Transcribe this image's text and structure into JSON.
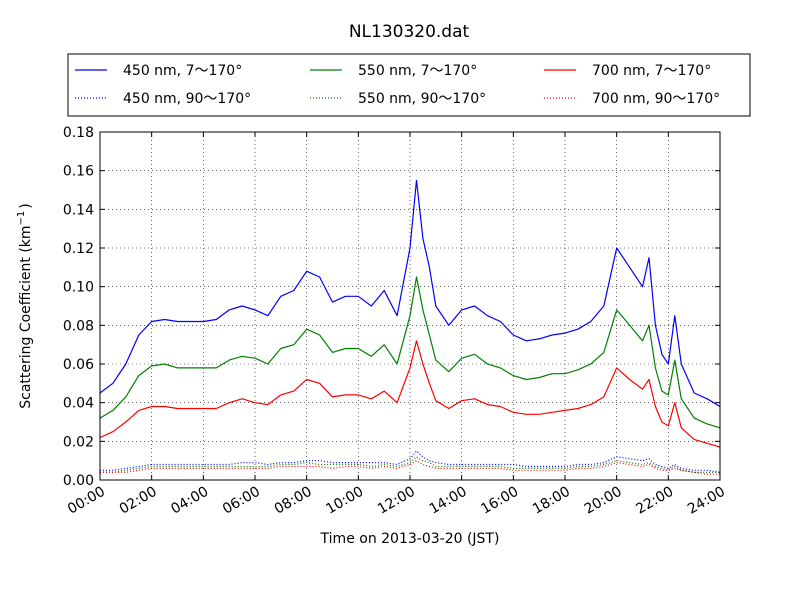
{
  "chart_data": {
    "type": "line",
    "title": "NL130320.dat",
    "xlabel": "Time on 2013-03-20 (JST)",
    "ylabel": "Scattering Coefficient (km",
    "ylabel_sup": "−1",
    "ylabel_close": ")",
    "xlim": [
      0,
      24
    ],
    "ylim": [
      0,
      0.18
    ],
    "grid": true,
    "legend_position": "top",
    "x_ticks": [
      {
        "value": 0,
        "label": "00:00"
      },
      {
        "value": 2,
        "label": "02:00"
      },
      {
        "value": 4,
        "label": "04:00"
      },
      {
        "value": 6,
        "label": "06:00"
      },
      {
        "value": 8,
        "label": "08:00"
      },
      {
        "value": 10,
        "label": "10:00"
      },
      {
        "value": 12,
        "label": "12:00"
      },
      {
        "value": 14,
        "label": "14:00"
      },
      {
        "value": 16,
        "label": "16:00"
      },
      {
        "value": 18,
        "label": "18:00"
      },
      {
        "value": 20,
        "label": "20:00"
      },
      {
        "value": 22,
        "label": "22:00"
      },
      {
        "value": 24,
        "label": "24:00"
      }
    ],
    "y_ticks": [
      {
        "value": 0.0,
        "label": "0.00"
      },
      {
        "value": 0.02,
        "label": "0.02"
      },
      {
        "value": 0.04,
        "label": "0.04"
      },
      {
        "value": 0.06,
        "label": "0.06"
      },
      {
        "value": 0.08,
        "label": "0.08"
      },
      {
        "value": 0.1,
        "label": "0.10"
      },
      {
        "value": 0.12,
        "label": "0.12"
      },
      {
        "value": 0.14,
        "label": "0.14"
      },
      {
        "value": 0.16,
        "label": "0.16"
      },
      {
        "value": 0.18,
        "label": "0.18"
      }
    ],
    "x": [
      0,
      0.5,
      1,
      1.5,
      2,
      2.5,
      3,
      3.5,
      4,
      4.5,
      5,
      5.5,
      6,
      6.5,
      7,
      7.5,
      8,
      8.5,
      9,
      9.5,
      10,
      10.5,
      11,
      11.5,
      12,
      12.25,
      12.5,
      12.75,
      13,
      13.5,
      14,
      14.5,
      15,
      15.5,
      16,
      16.5,
      17,
      17.5,
      18,
      18.5,
      19,
      19.5,
      20,
      20.5,
      21,
      21.25,
      21.5,
      21.75,
      22,
      22.25,
      22.5,
      23,
      23.5,
      24
    ],
    "series": [
      {
        "name": "450 nm, 7～170°",
        "color": "#0000ff",
        "style": "solid",
        "values": [
          0.045,
          0.05,
          0.06,
          0.075,
          0.082,
          0.083,
          0.082,
          0.082,
          0.082,
          0.083,
          0.088,
          0.09,
          0.088,
          0.085,
          0.095,
          0.098,
          0.108,
          0.105,
          0.092,
          0.095,
          0.095,
          0.09,
          0.098,
          0.085,
          0.12,
          0.155,
          0.125,
          0.11,
          0.09,
          0.08,
          0.088,
          0.09,
          0.085,
          0.082,
          0.075,
          0.072,
          0.073,
          0.075,
          0.076,
          0.078,
          0.082,
          0.09,
          0.12,
          0.11,
          0.1,
          0.115,
          0.08,
          0.065,
          0.06,
          0.085,
          0.06,
          0.045,
          0.042,
          0.038
        ]
      },
      {
        "name": "550 nm, 7～170°",
        "color": "#008000",
        "style": "solid",
        "values": [
          0.032,
          0.036,
          0.043,
          0.054,
          0.059,
          0.06,
          0.058,
          0.058,
          0.058,
          0.058,
          0.062,
          0.064,
          0.063,
          0.06,
          0.068,
          0.07,
          0.078,
          0.075,
          0.066,
          0.068,
          0.068,
          0.064,
          0.07,
          0.06,
          0.085,
          0.105,
          0.088,
          0.075,
          0.062,
          0.056,
          0.063,
          0.065,
          0.06,
          0.058,
          0.054,
          0.052,
          0.053,
          0.055,
          0.055,
          0.057,
          0.06,
          0.066,
          0.088,
          0.08,
          0.072,
          0.08,
          0.058,
          0.046,
          0.044,
          0.062,
          0.042,
          0.032,
          0.029,
          0.027
        ]
      },
      {
        "name": "700 nm, 7～170°",
        "color": "#ff0000",
        "style": "solid",
        "values": [
          0.022,
          0.025,
          0.03,
          0.036,
          0.038,
          0.038,
          0.037,
          0.037,
          0.037,
          0.037,
          0.04,
          0.042,
          0.04,
          0.039,
          0.044,
          0.046,
          0.052,
          0.05,
          0.043,
          0.044,
          0.044,
          0.042,
          0.046,
          0.04,
          0.058,
          0.072,
          0.06,
          0.05,
          0.041,
          0.037,
          0.041,
          0.042,
          0.039,
          0.038,
          0.035,
          0.034,
          0.034,
          0.035,
          0.036,
          0.037,
          0.039,
          0.043,
          0.058,
          0.052,
          0.047,
          0.052,
          0.038,
          0.03,
          0.028,
          0.04,
          0.027,
          0.021,
          0.019,
          0.017
        ]
      },
      {
        "name": "450 nm, 90～170°",
        "color": "#0000ff",
        "style": "dotted",
        "values": [
          0.005,
          0.005,
          0.006,
          0.007,
          0.008,
          0.008,
          0.008,
          0.008,
          0.008,
          0.008,
          0.008,
          0.009,
          0.009,
          0.008,
          0.009,
          0.009,
          0.01,
          0.01,
          0.009,
          0.009,
          0.009,
          0.009,
          0.009,
          0.008,
          0.011,
          0.015,
          0.012,
          0.01,
          0.009,
          0.008,
          0.008,
          0.008,
          0.008,
          0.008,
          0.008,
          0.007,
          0.007,
          0.007,
          0.007,
          0.008,
          0.008,
          0.009,
          0.012,
          0.011,
          0.01,
          0.011,
          0.008,
          0.007,
          0.006,
          0.008,
          0.006,
          0.005,
          0.005,
          0.004
        ]
      },
      {
        "name": "550 nm, 90～170°",
        "color": "#008000",
        "style": "dotted",
        "values": [
          0.004,
          0.004,
          0.005,
          0.006,
          0.007,
          0.007,
          0.007,
          0.007,
          0.007,
          0.007,
          0.007,
          0.007,
          0.007,
          0.007,
          0.008,
          0.008,
          0.009,
          0.008,
          0.008,
          0.008,
          0.008,
          0.007,
          0.008,
          0.007,
          0.009,
          0.012,
          0.01,
          0.009,
          0.007,
          0.007,
          0.007,
          0.007,
          0.007,
          0.007,
          0.006,
          0.006,
          0.006,
          0.006,
          0.006,
          0.007,
          0.007,
          0.008,
          0.01,
          0.009,
          0.008,
          0.009,
          0.007,
          0.006,
          0.005,
          0.007,
          0.005,
          0.004,
          0.004,
          0.004
        ]
      },
      {
        "name": "700 nm, 90～170°",
        "color": "#ff0000",
        "style": "dotted",
        "values": [
          0.004,
          0.004,
          0.004,
          0.005,
          0.006,
          0.006,
          0.006,
          0.006,
          0.006,
          0.006,
          0.006,
          0.006,
          0.006,
          0.006,
          0.007,
          0.007,
          0.007,
          0.007,
          0.006,
          0.007,
          0.007,
          0.006,
          0.007,
          0.006,
          0.008,
          0.01,
          0.008,
          0.007,
          0.006,
          0.006,
          0.006,
          0.006,
          0.006,
          0.006,
          0.005,
          0.005,
          0.005,
          0.005,
          0.005,
          0.006,
          0.006,
          0.007,
          0.009,
          0.008,
          0.007,
          0.008,
          0.006,
          0.005,
          0.005,
          0.006,
          0.005,
          0.004,
          0.003,
          0.003
        ]
      }
    ]
  }
}
